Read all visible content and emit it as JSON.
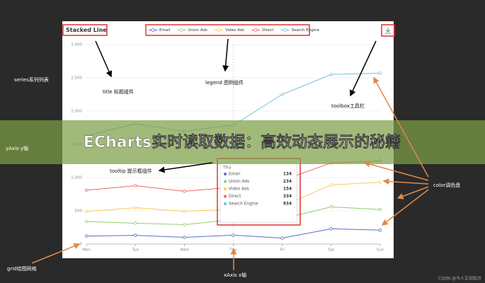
{
  "banner": "ECharts实时读取数据：高效动态展示的秘籍",
  "watermark": "CSDN @今人又何知冷",
  "annotations": {
    "series": "series系列列表",
    "title": "title 标题组件",
    "legend": "legend 图例组件",
    "toolbox": "toolbox工具栏",
    "yaxis": "yAxis y轴",
    "tooltip": "tooltip 提示框组件",
    "color": "color调色盘",
    "grid": "grid绘图网格",
    "xaxis": "xAxis x轴"
  },
  "chart_data": {
    "type": "line",
    "stacked": true,
    "title": "Stacked Line",
    "categories": [
      "Mon",
      "Tue",
      "Wed",
      "Thu",
      "Fri",
      "Sat",
      "Sun"
    ],
    "series": [
      {
        "name": "Email",
        "color": "#5470c6",
        "values": [
          120,
          132,
          101,
          134,
          90,
          230,
          210
        ]
      },
      {
        "name": "Union Ads",
        "color": "#91cc75",
        "values": [
          220,
          182,
          191,
          234,
          290,
          330,
          310
        ]
      },
      {
        "name": "Video Ads",
        "color": "#fac858",
        "values": [
          150,
          232,
          201,
          154,
          190,
          330,
          410
        ]
      },
      {
        "name": "Direct",
        "color": "#ee6666",
        "values": [
          320,
          332,
          301,
          334,
          390,
          330,
          320
        ]
      },
      {
        "name": "Search Engine",
        "color": "#73c0de",
        "values": [
          820,
          932,
          901,
          934,
          1290,
          1330,
          1320
        ]
      }
    ],
    "ylim": [
      0,
      3000
    ],
    "yticks": [
      0,
      500,
      {
        "value": 1000,
        "label": "1,000"
      },
      {
        "value": 1500,
        "label": "1,500"
      },
      {
        "value": 2000,
        "label": "2,000"
      },
      {
        "value": 2500,
        "label": "2,500"
      },
      {
        "value": 3000,
        "label": "3,000"
      }
    ],
    "grid": true,
    "tooltip_index": 3
  }
}
